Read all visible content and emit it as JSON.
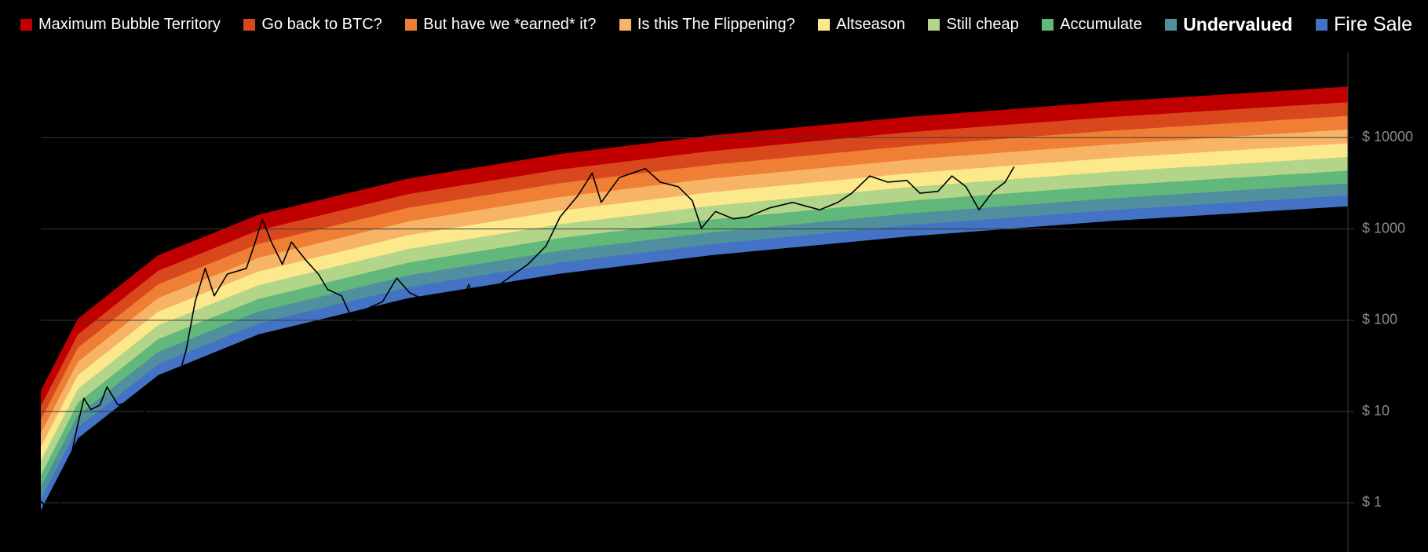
{
  "chart_data": {
    "type": "rainbow",
    "log_y": true,
    "grid": true,
    "legend": "top",
    "xlim": [
      2015.83,
      2028.87
    ],
    "ylim": [
      0.29,
      87000
    ],
    "yticks": [
      {
        "value": 1,
        "label": "$ 1"
      },
      {
        "value": 10,
        "label": "$ 10"
      },
      {
        "value": 100,
        "label": "$ 100"
      },
      {
        "value": 1000,
        "label": "$ 1000"
      },
      {
        "value": 10000,
        "label": "$ 10000"
      }
    ],
    "x": [
      2015.83,
      2016.2,
      2017,
      2018,
      2019.5,
      2021,
      2022.5,
      2024.5,
      2026.5,
      2028.87
    ],
    "series": [
      {
        "name": "Maximum Bubble Territory",
        "color": "#c00000",
        "values": [
          17,
          104,
          515,
          1430,
          3570,
          6590,
          10500,
          16900,
          24800,
          36100
        ]
      },
      {
        "name": "Go back to BTC?",
        "color": "#d9481c",
        "values": [
          11.5,
          70,
          348,
          964,
          2410,
          4460,
          7080,
          11500,
          16800,
          24400
        ]
      },
      {
        "name": "But have we *earned* it?",
        "color": "#ef7f35",
        "values": [
          8.1,
          50,
          247,
          683,
          1710,
          3160,
          5020,
          8120,
          11900,
          17300
        ]
      },
      {
        "name": "Is this The Flippening?",
        "color": "#f7b466",
        "values": [
          5.8,
          35,
          175,
          483,
          1210,
          2230,
          3550,
          5740,
          8420,
          12300
        ]
      },
      {
        "name": "Altseason",
        "color": "#fce98c",
        "values": [
          4.1,
          25,
          124,
          342,
          856,
          1580,
          2510,
          4070,
          5960,
          8670
        ]
      },
      {
        "name": "Still cheap",
        "color": "#b3d58a",
        "values": [
          2.9,
          17.7,
          88,
          242,
          606,
          1120,
          1780,
          2880,
          4220,
          6140
        ]
      },
      {
        "name": "Accumulate",
        "color": "#62b77b",
        "values": [
          2.0,
          12.5,
          62,
          171,
          428,
          791,
          1260,
          2030,
          2980,
          4340
        ]
      },
      {
        "name": "Undervalued",
        "color": "#4f8f9e",
        "values": [
          1.5,
          9.1,
          45,
          124,
          311,
          574,
          912,
          1480,
          2160,
          3150
        ]
      },
      {
        "name": "Fire Sale",
        "color": "#4472c4",
        "values": [
          1.1,
          6.7,
          33,
          92,
          230,
          426,
          676,
          1100,
          1600,
          2330
        ]
      }
    ],
    "band_floor": [
      0.83,
      5.1,
      25,
      70,
      175,
      323,
      513,
      830,
      1220,
      1770
    ],
    "price": {
      "color": "#000000",
      "x": [
        2015.83,
        2015.92,
        2016.01,
        2016.1,
        2016.19,
        2016.26,
        2016.33,
        2016.42,
        2016.49,
        2016.6,
        2016.74,
        2016.87,
        2016.97,
        2017.06,
        2017.19,
        2017.28,
        2017.37,
        2017.47,
        2017.56,
        2017.69,
        2017.88,
        2017.97,
        2018.04,
        2018.13,
        2018.24,
        2018.33,
        2018.47,
        2018.6,
        2018.69,
        2018.83,
        2018.95,
        2019.06,
        2019.24,
        2019.38,
        2019.51,
        2019.69,
        2019.87,
        2019.97,
        2020.1,
        2020.19,
        2020.37,
        2020.55,
        2020.69,
        2020.87,
        2021.01,
        2021.19,
        2021.33,
        2021.42,
        2021.6,
        2021.86,
        2022.01,
        2022.19,
        2022.33,
        2022.42,
        2022.56,
        2022.74,
        2022.88,
        2023.1,
        2023.33,
        2023.6,
        2023.78,
        2023.92,
        2024.1,
        2024.28,
        2024.47,
        2024.6,
        2024.78,
        2024.92,
        2025.06,
        2025.19,
        2025.33,
        2025.45,
        2025.54
      ],
      "values": [
        1.05,
        0.78,
        0.93,
        2.2,
        6.6,
        14,
        10.5,
        11.8,
        18.6,
        11.8,
        13,
        10,
        7.4,
        9.3,
        21,
        47,
        160,
        370,
        185,
        320,
        370,
        720,
        1290,
        720,
        410,
        720,
        460,
        320,
        218,
        185,
        95,
        130,
        160,
        290,
        200,
        160,
        130,
        123,
        246,
        135,
        230,
        320,
        410,
        650,
        1350,
        2330,
        4090,
        1950,
        3640,
        4580,
        3250,
        2900,
        2040,
        1020,
        1550,
        1290,
        1350,
        1700,
        1950,
        1620,
        1950,
        2460,
        3800,
        3250,
        3400,
        2460,
        2580,
        3800,
        2900,
        1620,
        2580,
        3250,
        4800
      ]
    }
  }
}
